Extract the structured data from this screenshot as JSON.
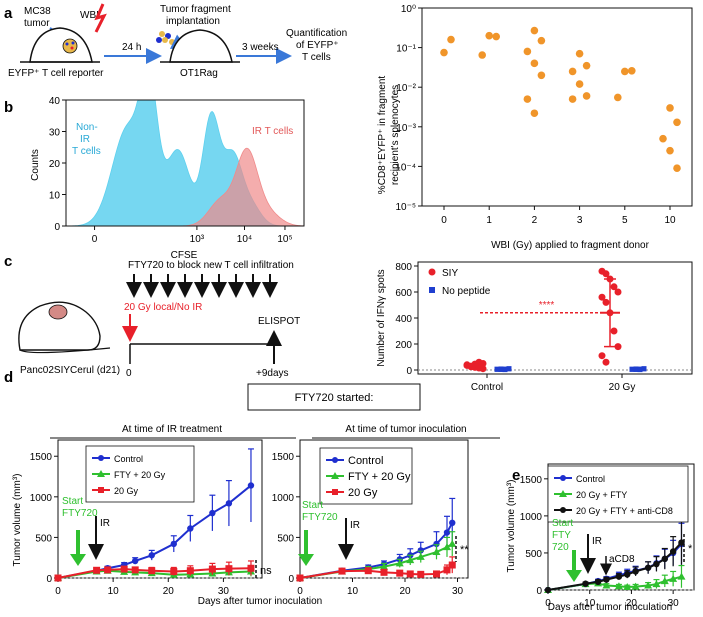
{
  "panels": {
    "a": "a",
    "b": "b",
    "c": "c",
    "d": "d",
    "e": "e"
  },
  "schematic_a": {
    "mc38": [
      "MC38",
      "tumor"
    ],
    "wbi": "WBI",
    "reporter": "EYFP⁺ T cell reporter",
    "time1": "24 h",
    "implant": [
      "Tumor fragment",
      "implantation"
    ],
    "recipient": "OT1Rag",
    "time2": "3 weeks",
    "quant": [
      "Quantification",
      "of EYFP⁺",
      "T cells"
    ]
  },
  "schematic_c": {
    "fty": "FTY720 to block new T cell infiltration",
    "ir": "20 Gy local/No IR",
    "elispot": "ELISPOT",
    "mouse": "Panc02SIYCerul (d21)",
    "t0": "0",
    "t9": "+9days"
  },
  "box_label": "FTY720 started:",
  "group_left": "At time of IR treatment",
  "group_right": "At time of tumor inoculation",
  "chart_data": [
    {
      "id": "a-scatter",
      "type": "scatter",
      "ylabel": [
        "%CD8⁺EYFP⁺ in fragment",
        "recipient's splenocytes"
      ],
      "xlabel": "WBI (Gy) applied to fragment donor",
      "x_ticks": [
        "0",
        "1",
        "2",
        "3",
        "5",
        "10"
      ],
      "y_ticks": [
        "10⁰",
        "10⁻¹",
        "10⁻²",
        "10⁻³",
        "10⁻⁴",
        "10⁻⁵"
      ],
      "y_scale": "log",
      "ylim": [
        1e-05,
        1
      ],
      "color": "#f0952a",
      "points": [
        {
          "x": "0",
          "y": 0.075
        },
        {
          "x": "0",
          "y": 0.16
        },
        {
          "x": "1",
          "y": 0.2
        },
        {
          "x": "1",
          "y": 0.19
        },
        {
          "x": "1",
          "y": 0.065
        },
        {
          "x": "2",
          "y": 0.27
        },
        {
          "x": "2",
          "y": 0.15
        },
        {
          "x": "2",
          "y": 0.08
        },
        {
          "x": "2",
          "y": 0.04
        },
        {
          "x": "2",
          "y": 0.02
        },
        {
          "x": "2",
          "y": 0.005
        },
        {
          "x": "2",
          "y": 0.0022
        },
        {
          "x": "3",
          "y": 0.07
        },
        {
          "x": "3",
          "y": 0.035
        },
        {
          "x": "3",
          "y": 0.025
        },
        {
          "x": "3",
          "y": 0.012
        },
        {
          "x": "3",
          "y": 0.006
        },
        {
          "x": "3",
          "y": 0.005
        },
        {
          "x": "5",
          "y": 0.025
        },
        {
          "x": "5",
          "y": 0.026
        },
        {
          "x": "5",
          "y": 0.0055
        },
        {
          "x": "10",
          "y": 0.003
        },
        {
          "x": "10",
          "y": 0.0013
        },
        {
          "x": "10",
          "y": 0.0005
        },
        {
          "x": "10",
          "y": 0.00025
        },
        {
          "x": "10",
          "y": 9e-05
        }
      ]
    },
    {
      "id": "b-histogram",
      "type": "area",
      "xlabel": "CFSE",
      "ylabel": "Counts",
      "y_ticks": [
        "0",
        "10",
        "20",
        "30",
        "40"
      ],
      "x_ticks": [
        "0",
        "10³",
        "10⁴",
        "10⁵"
      ],
      "ylim": [
        0,
        40
      ],
      "series": [
        {
          "name": "Non-IR T cells",
          "label": [
            "Non-",
            "IR",
            "T cells"
          ],
          "color": "#5ed0ee"
        },
        {
          "name": "IR T cells",
          "color": "#f08a8a"
        }
      ]
    },
    {
      "id": "c-elispot",
      "type": "scatter",
      "ylabel": "Number of IFNγ spots",
      "y_ticks": [
        "0",
        "200",
        "400",
        "600",
        "800"
      ],
      "ylim": [
        0,
        800
      ],
      "categories": [
        "Control",
        "20 Gy"
      ],
      "legend": [
        {
          "name": "SIY",
          "color": "#e8202a"
        },
        {
          "name": "No peptide",
          "color": "#1f3fcf"
        }
      ],
      "significance": "****",
      "series": [
        {
          "name": "SIY",
          "values": [
            [
              40,
              30,
              20,
              60,
              10,
              35,
              25,
              45,
              15,
              50
            ],
            [
              760,
              740,
              700,
              640,
              600,
              560,
              520,
              440,
              300,
              180,
              110,
              60
            ]
          ],
          "mean": [
            35,
            440
          ],
          "sd_high": [
            null,
            700
          ],
          "sd_low": [
            null,
            180
          ]
        },
        {
          "name": "No peptide",
          "values": [
            [
              5,
              8,
              3,
              10,
              6,
              4,
              7,
              9
            ],
            [
              5,
              8,
              3,
              10,
              6,
              4,
              7,
              9
            ]
          ]
        }
      ]
    },
    {
      "id": "d-left",
      "type": "line",
      "ylabel": "Tumor volume (mm³)",
      "y_ticks": [
        "0",
        "500",
        "1000",
        "1500"
      ],
      "x_ticks": [
        "0",
        "10",
        "20",
        "30"
      ],
      "ylim": [
        0,
        1700
      ],
      "xlim": [
        0,
        37
      ],
      "arrow_start": [
        "Start",
        "FTY720"
      ],
      "arrow_ir": "IR",
      "significance": "ns",
      "series": [
        {
          "name": "Control",
          "color": "#1f2fcf",
          "marker": "circle",
          "x": [
            0,
            7,
            9,
            12,
            14,
            17,
            21,
            24,
            28,
            31,
            35
          ],
          "y": [
            0,
            90,
            120,
            160,
            210,
            280,
            420,
            610,
            800,
            920,
            1140
          ],
          "err": [
            0,
            20,
            25,
            30,
            40,
            60,
            100,
            160,
            220,
            280,
            450
          ]
        },
        {
          "name": "FTY + 20 Gy",
          "color": "#2fc02f",
          "marker": "triangle",
          "x": [
            0,
            7,
            9,
            12,
            14,
            17,
            21,
            24,
            28,
            31,
            35
          ],
          "y": [
            0,
            80,
            90,
            75,
            70,
            60,
            40,
            45,
            55,
            70,
            80
          ],
          "err": [
            0,
            20,
            20,
            20,
            20,
            20,
            20,
            25,
            30,
            40,
            60
          ]
        },
        {
          "name": "20 Gy",
          "color": "#e8202a",
          "marker": "square",
          "x": [
            0,
            7,
            9,
            12,
            14,
            17,
            21,
            24,
            28,
            31,
            35
          ],
          "y": [
            0,
            95,
            100,
            110,
            100,
            90,
            80,
            90,
            110,
            115,
            120
          ],
          "err": [
            0,
            20,
            20,
            25,
            30,
            40,
            50,
            60,
            70,
            80,
            90
          ]
        }
      ]
    },
    {
      "id": "d-right",
      "type": "line",
      "xlabel": "Days after tumor inoculation",
      "y_ticks": [
        "0",
        "500",
        "1000",
        "1500"
      ],
      "x_ticks": [
        "0",
        "10",
        "20",
        "30"
      ],
      "ylim": [
        0,
        1700
      ],
      "xlim": [
        0,
        32
      ],
      "arrow_start": [
        "Start",
        "FTY720"
      ],
      "arrow_ir": "IR",
      "significance": "**",
      "series": [
        {
          "name": "Control",
          "color": "#1f2fcf",
          "marker": "circle",
          "x": [
            0,
            8,
            13,
            16,
            19,
            21,
            23,
            26,
            28,
            29
          ],
          "y": [
            0,
            90,
            130,
            170,
            230,
            280,
            340,
            420,
            560,
            680
          ],
          "err": [
            0,
            20,
            30,
            40,
            60,
            80,
            100,
            150,
            200,
            300
          ]
        },
        {
          "name": "FTY + 20 Gy",
          "color": "#2fc02f",
          "marker": "triangle",
          "x": [
            0,
            8,
            13,
            16,
            19,
            21,
            23,
            26,
            28,
            29
          ],
          "y": [
            0,
            80,
            110,
            140,
            180,
            220,
            260,
            320,
            380,
            420
          ],
          "err": [
            0,
            20,
            30,
            40,
            50,
            60,
            70,
            90,
            120,
            150
          ]
        },
        {
          "name": "20 Gy",
          "color": "#e8202a",
          "marker": "square",
          "x": [
            0,
            8,
            13,
            16,
            19,
            21,
            23,
            26,
            28,
            29
          ],
          "y": [
            0,
            85,
            90,
            70,
            60,
            50,
            45,
            50,
            100,
            160
          ],
          "err": [
            0,
            20,
            20,
            20,
            20,
            20,
            20,
            30,
            60,
            100
          ]
        }
      ]
    },
    {
      "id": "e",
      "type": "line",
      "xlabel": "Days after tumor inoculation",
      "ylabel": "Tumor volume (mm³)",
      "y_ticks": [
        "0",
        "500",
        "1000",
        "1500"
      ],
      "x_ticks": [
        "0",
        "10",
        "20",
        "30"
      ],
      "ylim": [
        0,
        1700
      ],
      "xlim": [
        0,
        35
      ],
      "arrow_start": [
        "Start",
        "FTY",
        "720"
      ],
      "arrow_ir": "IR",
      "arrow_acd8": "aCD8",
      "significance": "*",
      "series": [
        {
          "name": "Control",
          "color": "#1f2fcf",
          "marker": "circle",
          "x": [
            0,
            9,
            12,
            14,
            17,
            19,
            21,
            24,
            26,
            28,
            30,
            32
          ],
          "y": [
            0,
            80,
            120,
            150,
            200,
            230,
            260,
            300,
            360,
            420,
            500,
            620
          ],
          "err": [
            0,
            20,
            25,
            30,
            40,
            50,
            60,
            80,
            100,
            130,
            170,
            280
          ]
        },
        {
          "name": "20 Gy + FTY",
          "color": "#2fc02f",
          "marker": "triangle",
          "x": [
            0,
            9,
            12,
            14,
            17,
            19,
            21,
            24,
            26,
            28,
            30,
            32
          ],
          "y": [
            0,
            80,
            90,
            60,
            50,
            40,
            45,
            60,
            80,
            120,
            150,
            180
          ],
          "err": [
            0,
            20,
            30,
            25,
            25,
            25,
            30,
            40,
            60,
            80,
            100,
            150
          ]
        },
        {
          "name": "20 Gy + FTY + anti-CD8",
          "color": "#111111",
          "marker": "circle",
          "x": [
            0,
            9,
            12,
            14,
            17,
            19,
            21,
            24,
            26,
            28,
            30,
            32
          ],
          "y": [
            0,
            85,
            110,
            140,
            180,
            210,
            250,
            300,
            350,
            420,
            520,
            640
          ],
          "err": [
            0,
            20,
            25,
            30,
            40,
            50,
            60,
            80,
            100,
            140,
            200,
            300
          ]
        }
      ]
    }
  ]
}
